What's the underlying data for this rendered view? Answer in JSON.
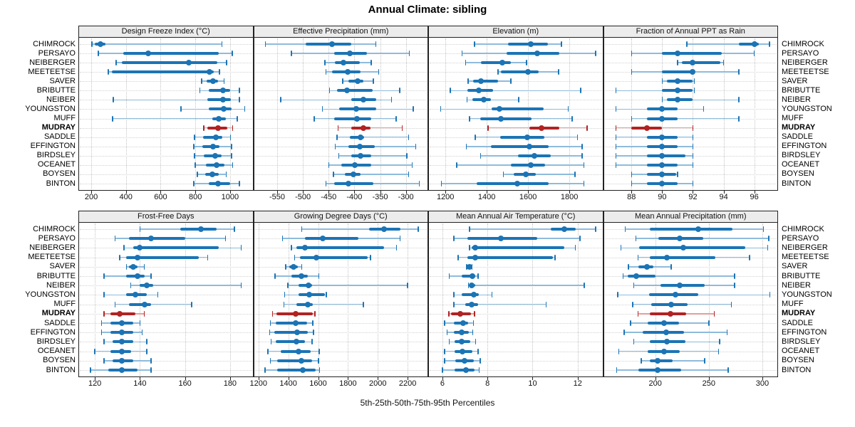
{
  "header": {
    "title": "Annual Climate: sibling"
  },
  "caption": "5th-25th-50th-75th-95th Percentiles",
  "percentile_labels": [
    "5th",
    "25th",
    "50th",
    "75th",
    "95th"
  ],
  "stations": [
    "CHIMROCK",
    "PERSAYO",
    "NEIBERGER",
    "MEETEETSE",
    "SAVER",
    "BRIBUTTE",
    "NEIBER",
    "YOUNGSTON",
    "MUFF",
    "MUDRAY",
    "SADDLE",
    "EFFINGTON",
    "BIRDSLEY",
    "OCEANET",
    "BOYSEN",
    "BINTON"
  ],
  "highlight_station": "MUDRAY",
  "colors": {
    "blue": "#1B74B5",
    "blue_light": "#8FBBDC",
    "red": "#B22222",
    "red_light": "#DFA09A",
    "strip_bg": "#ECECEC",
    "grid": "#C8C8C8",
    "border": "#222222"
  },
  "chart_data": [
    {
      "type": "dot-whisker",
      "title": "Design Freeze Index (°C)",
      "xlim": [
        130,
        1130
      ],
      "ticks": [
        200,
        400,
        600,
        800,
        1000
      ],
      "series": [
        [
          203,
          220,
          252,
          280,
          953
        ],
        [
          241,
          384,
          529,
          935,
          1012
        ],
        [
          343,
          377,
          762,
          928,
          980
        ],
        [
          298,
          320,
          880,
          905,
          940
        ],
        [
          837,
          867,
          901,
          931,
          966
        ],
        [
          827,
          878,
          961,
          1000,
          1055
        ],
        [
          327,
          871,
          958,
          1003,
          1055
        ],
        [
          717,
          878,
          964,
          1009,
          1085
        ],
        [
          323,
          898,
          936,
          975,
          1041
        ],
        [
          848,
          871,
          931,
          986,
          1014
        ],
        [
          796,
          844,
          917,
          954,
          1003
        ],
        [
          792,
          840,
          903,
          940,
          1009
        ],
        [
          796,
          848,
          913,
          951,
          1009
        ],
        [
          800,
          862,
          923,
          968,
          1014
        ],
        [
          812,
          855,
          896,
          934,
          978
        ],
        [
          792,
          878,
          931,
          1000,
          1055
        ]
      ]
    },
    {
      "type": "dot-whisker",
      "title": "Effective Precipitation (mm)",
      "xlim": [
        -595,
        -258
      ],
      "ticks": [
        -550,
        -500,
        -450,
        -400,
        -350,
        -300
      ],
      "series": [
        [
          -573,
          -494,
          -444,
          -406,
          -358
        ],
        [
          -522,
          -439,
          -409,
          -376,
          -293
        ],
        [
          -457,
          -438,
          -421,
          -390,
          -367
        ],
        [
          -455,
          -443,
          -413,
          -388,
          -353
        ],
        [
          -423,
          -411,
          -393,
          -383,
          -363
        ],
        [
          -448,
          -434,
          -414,
          -365,
          -312
        ],
        [
          -543,
          -406,
          -382,
          -358,
          -328
        ],
        [
          -462,
          -430,
          -396,
          -358,
          -286
        ],
        [
          -478,
          -439,
          -395,
          -367,
          -319
        ],
        [
          -432,
          -406,
          -383,
          -369,
          -307
        ],
        [
          -434,
          -409,
          -388,
          -381,
          -295
        ],
        [
          -437,
          -411,
          -390,
          -360,
          -281
        ],
        [
          -430,
          -406,
          -388,
          -367,
          -298
        ],
        [
          -450,
          -425,
          -399,
          -367,
          -288
        ],
        [
          -441,
          -418,
          -402,
          -388,
          -295
        ],
        [
          -455,
          -439,
          -411,
          -363,
          -274
        ]
      ]
    },
    {
      "type": "dot-whisker",
      "title": "Elevation (m)",
      "xlim": [
        1120,
        1960
      ],
      "ticks": [
        1200,
        1400,
        1600,
        1800
      ],
      "series": [
        [
          1341,
          1503,
          1614,
          1697,
          1761
        ],
        [
          1281,
          1495,
          1643,
          1753,
          1928
        ],
        [
          1298,
          1373,
          1477,
          1518,
          1593
        ],
        [
          1454,
          1468,
          1600,
          1650,
          1747
        ],
        [
          1310,
          1335,
          1371,
          1455,
          1517
        ],
        [
          1224,
          1305,
          1360,
          1430,
          1855
        ],
        [
          1305,
          1330,
          1387,
          1420,
          1555
        ],
        [
          1177,
          1423,
          1462,
          1676,
          1795
        ],
        [
          1316,
          1370,
          1469,
          1616,
          1813
        ],
        [
          1406,
          1608,
          1665,
          1750,
          1886
        ],
        [
          1345,
          1466,
          1597,
          1680,
          1839
        ],
        [
          1301,
          1420,
          1608,
          1700,
          1862
        ],
        [
          1370,
          1550,
          1631,
          1709,
          1862
        ],
        [
          1254,
          1518,
          1613,
          1682,
          1870
        ],
        [
          1481,
          1532,
          1590,
          1636,
          1828
        ],
        [
          1180,
          1350,
          1547,
          1700,
          1870
        ]
      ]
    },
    {
      "type": "dot-whisker",
      "title": "Fraction of Annual PPT as Rain",
      "xlim": [
        86.2,
        97.5
      ],
      "ticks": [
        88,
        90,
        92,
        94,
        96
      ],
      "series": [
        [
          91.6,
          95.0,
          96.0,
          96.3,
          97.0
        ],
        [
          88.0,
          90.0,
          91.0,
          93.9,
          96.0
        ],
        [
          91.0,
          91.3,
          92.0,
          93.8,
          94.0
        ],
        [
          88.0,
          90.0,
          92.0,
          92.1,
          95.0
        ],
        [
          90.0,
          90.3,
          91.0,
          92.0,
          92.1
        ],
        [
          87.0,
          90.0,
          91.0,
          92.0,
          92.1
        ],
        [
          90.0,
          90.3,
          91.0,
          92.0,
          95.0
        ],
        [
          87.0,
          89.0,
          90.0,
          91.0,
          92.7
        ],
        [
          88.0,
          89.0,
          90.0,
          91.0,
          95.0
        ],
        [
          87.0,
          88.0,
          89.0,
          90.0,
          92.0
        ],
        [
          87.0,
          89.0,
          90.0,
          91.0,
          92.0
        ],
        [
          87.0,
          89.0,
          90.0,
          91.0,
          92.0
        ],
        [
          87.0,
          89.0,
          90.0,
          91.5,
          92.0
        ],
        [
          87.0,
          89.0,
          90.0,
          91.0,
          92.0
        ],
        [
          88.0,
          89.0,
          90.0,
          90.9,
          91.0
        ],
        [
          88.0,
          89.0,
          90.0,
          91.0,
          92.0
        ]
      ]
    },
    {
      "type": "dot-whisker",
      "title": "Frost-Free Days",
      "xlim": [
        113,
        190
      ],
      "ticks": [
        120,
        140,
        160,
        180
      ],
      "series": [
        [
          140,
          158,
          167,
          174,
          182
        ],
        [
          129,
          135,
          145,
          160,
          178
        ],
        [
          133,
          137,
          140,
          175,
          185
        ],
        [
          131,
          134,
          139,
          166,
          170
        ],
        [
          134,
          135,
          137,
          139,
          142
        ],
        [
          124,
          134,
          139,
          142,
          145
        ],
        [
          136,
          140,
          143,
          146,
          185
        ],
        [
          124,
          134,
          138,
          143,
          148
        ],
        [
          129,
          135,
          142,
          145,
          163
        ],
        [
          124,
          127,
          131,
          138,
          142
        ],
        [
          123,
          127,
          132,
          137,
          140
        ],
        [
          123,
          127,
          132,
          137,
          141
        ],
        [
          124,
          128,
          132,
          137,
          143
        ],
        [
          120,
          127,
          132,
          136,
          143
        ],
        [
          124,
          128,
          132,
          137,
          145
        ],
        [
          118,
          126,
          132,
          139,
          145
        ]
      ]
    },
    {
      "type": "dot-whisker",
      "title": "Growing Degree Days (°C)",
      "xlim": [
        1170,
        2333
      ],
      "ticks": [
        1200,
        1400,
        1600,
        1800,
        2000,
        2200
      ],
      "series": [
        [
          1490,
          1940,
          2040,
          2150,
          2270
        ],
        [
          1360,
          1510,
          1630,
          1870,
          2150
        ],
        [
          1420,
          1455,
          1513,
          2040,
          2125
        ],
        [
          1443,
          1478,
          1586,
          1930,
          1950
        ],
        [
          1383,
          1406,
          1433,
          1462,
          1490
        ],
        [
          1311,
          1422,
          1489,
          1533,
          1605
        ],
        [
          1398,
          1470,
          1537,
          1557,
          2200
        ],
        [
          1375,
          1470,
          1540,
          1645,
          1655
        ],
        [
          1371,
          1454,
          1529,
          1565,
          1903
        ],
        [
          1295,
          1320,
          1450,
          1565,
          1578
        ],
        [
          1280,
          1316,
          1450,
          1525,
          1565
        ],
        [
          1275,
          1306,
          1459,
          1529,
          1570
        ],
        [
          1284,
          1316,
          1454,
          1513,
          1560
        ],
        [
          1263,
          1351,
          1470,
          1549,
          1608
        ],
        [
          1279,
          1327,
          1490,
          1557,
          1602
        ],
        [
          1244,
          1327,
          1498,
          1581,
          1610
        ]
      ]
    },
    {
      "type": "dot-whisker",
      "title": "Mean Annual Air Temperature (°C)",
      "xlim": [
        5.4,
        13.1
      ],
      "ticks": [
        6,
        8,
        10,
        12
      ],
      "series": [
        [
          7.2,
          10.8,
          11.4,
          11.9,
          12.8
        ],
        [
          6.5,
          7.1,
          8.6,
          10.2,
          12.1
        ],
        [
          7.2,
          7.3,
          7.45,
          11.4,
          11.9
        ],
        [
          6.7,
          7.1,
          7.45,
          10.9,
          11.0
        ],
        [
          7.08,
          7.12,
          7.21,
          7.28,
          7.32
        ],
        [
          6.3,
          6.85,
          7.34,
          7.45,
          7.58
        ],
        [
          7.16,
          7.21,
          7.29,
          7.47,
          12.3
        ],
        [
          6.5,
          6.84,
          7.39,
          7.6,
          8.2
        ],
        [
          6.5,
          7.0,
          7.3,
          7.58,
          10.6
        ],
        [
          6.29,
          6.37,
          6.79,
          7.26,
          7.42
        ],
        [
          6.1,
          6.5,
          6.93,
          7.15,
          7.37
        ],
        [
          6.2,
          6.5,
          6.87,
          7.18,
          7.35
        ],
        [
          6.3,
          6.55,
          6.84,
          7.24,
          7.47
        ],
        [
          6.1,
          6.55,
          6.89,
          7.32,
          7.58
        ],
        [
          6.1,
          6.58,
          6.97,
          7.39,
          7.68
        ],
        [
          6.0,
          6.53,
          7.05,
          7.42,
          7.63
        ]
      ]
    },
    {
      "type": "dot-whisker",
      "title": "Mean Annual Precipitation (mm)",
      "xlim": [
        152,
        314
      ],
      "ticks": [
        200,
        250,
        300
      ],
      "series": [
        [
          172,
          195,
          240,
          272,
          301
        ],
        [
          182,
          203,
          223,
          245,
          306
        ],
        [
          168,
          185,
          226,
          284,
          305
        ],
        [
          184,
          195,
          211,
          256,
          288
        ],
        [
          175,
          184,
          192,
          198,
          215
        ],
        [
          170,
          174,
          182,
          200,
          274
        ],
        [
          180,
          205,
          223,
          246,
          274
        ],
        [
          165,
          194,
          219,
          240,
          307
        ],
        [
          179,
          196,
          215,
          230,
          271
        ],
        [
          184,
          195,
          214,
          229,
          255
        ],
        [
          177,
          193,
          208,
          222,
          250
        ],
        [
          171,
          188,
          210,
          227,
          267
        ],
        [
          180,
          195,
          211,
          228,
          260
        ],
        [
          166,
          193,
          208,
          223,
          259
        ],
        [
          187,
          195,
          202,
          216,
          246
        ],
        [
          164,
          184,
          202,
          224,
          268
        ]
      ]
    }
  ]
}
